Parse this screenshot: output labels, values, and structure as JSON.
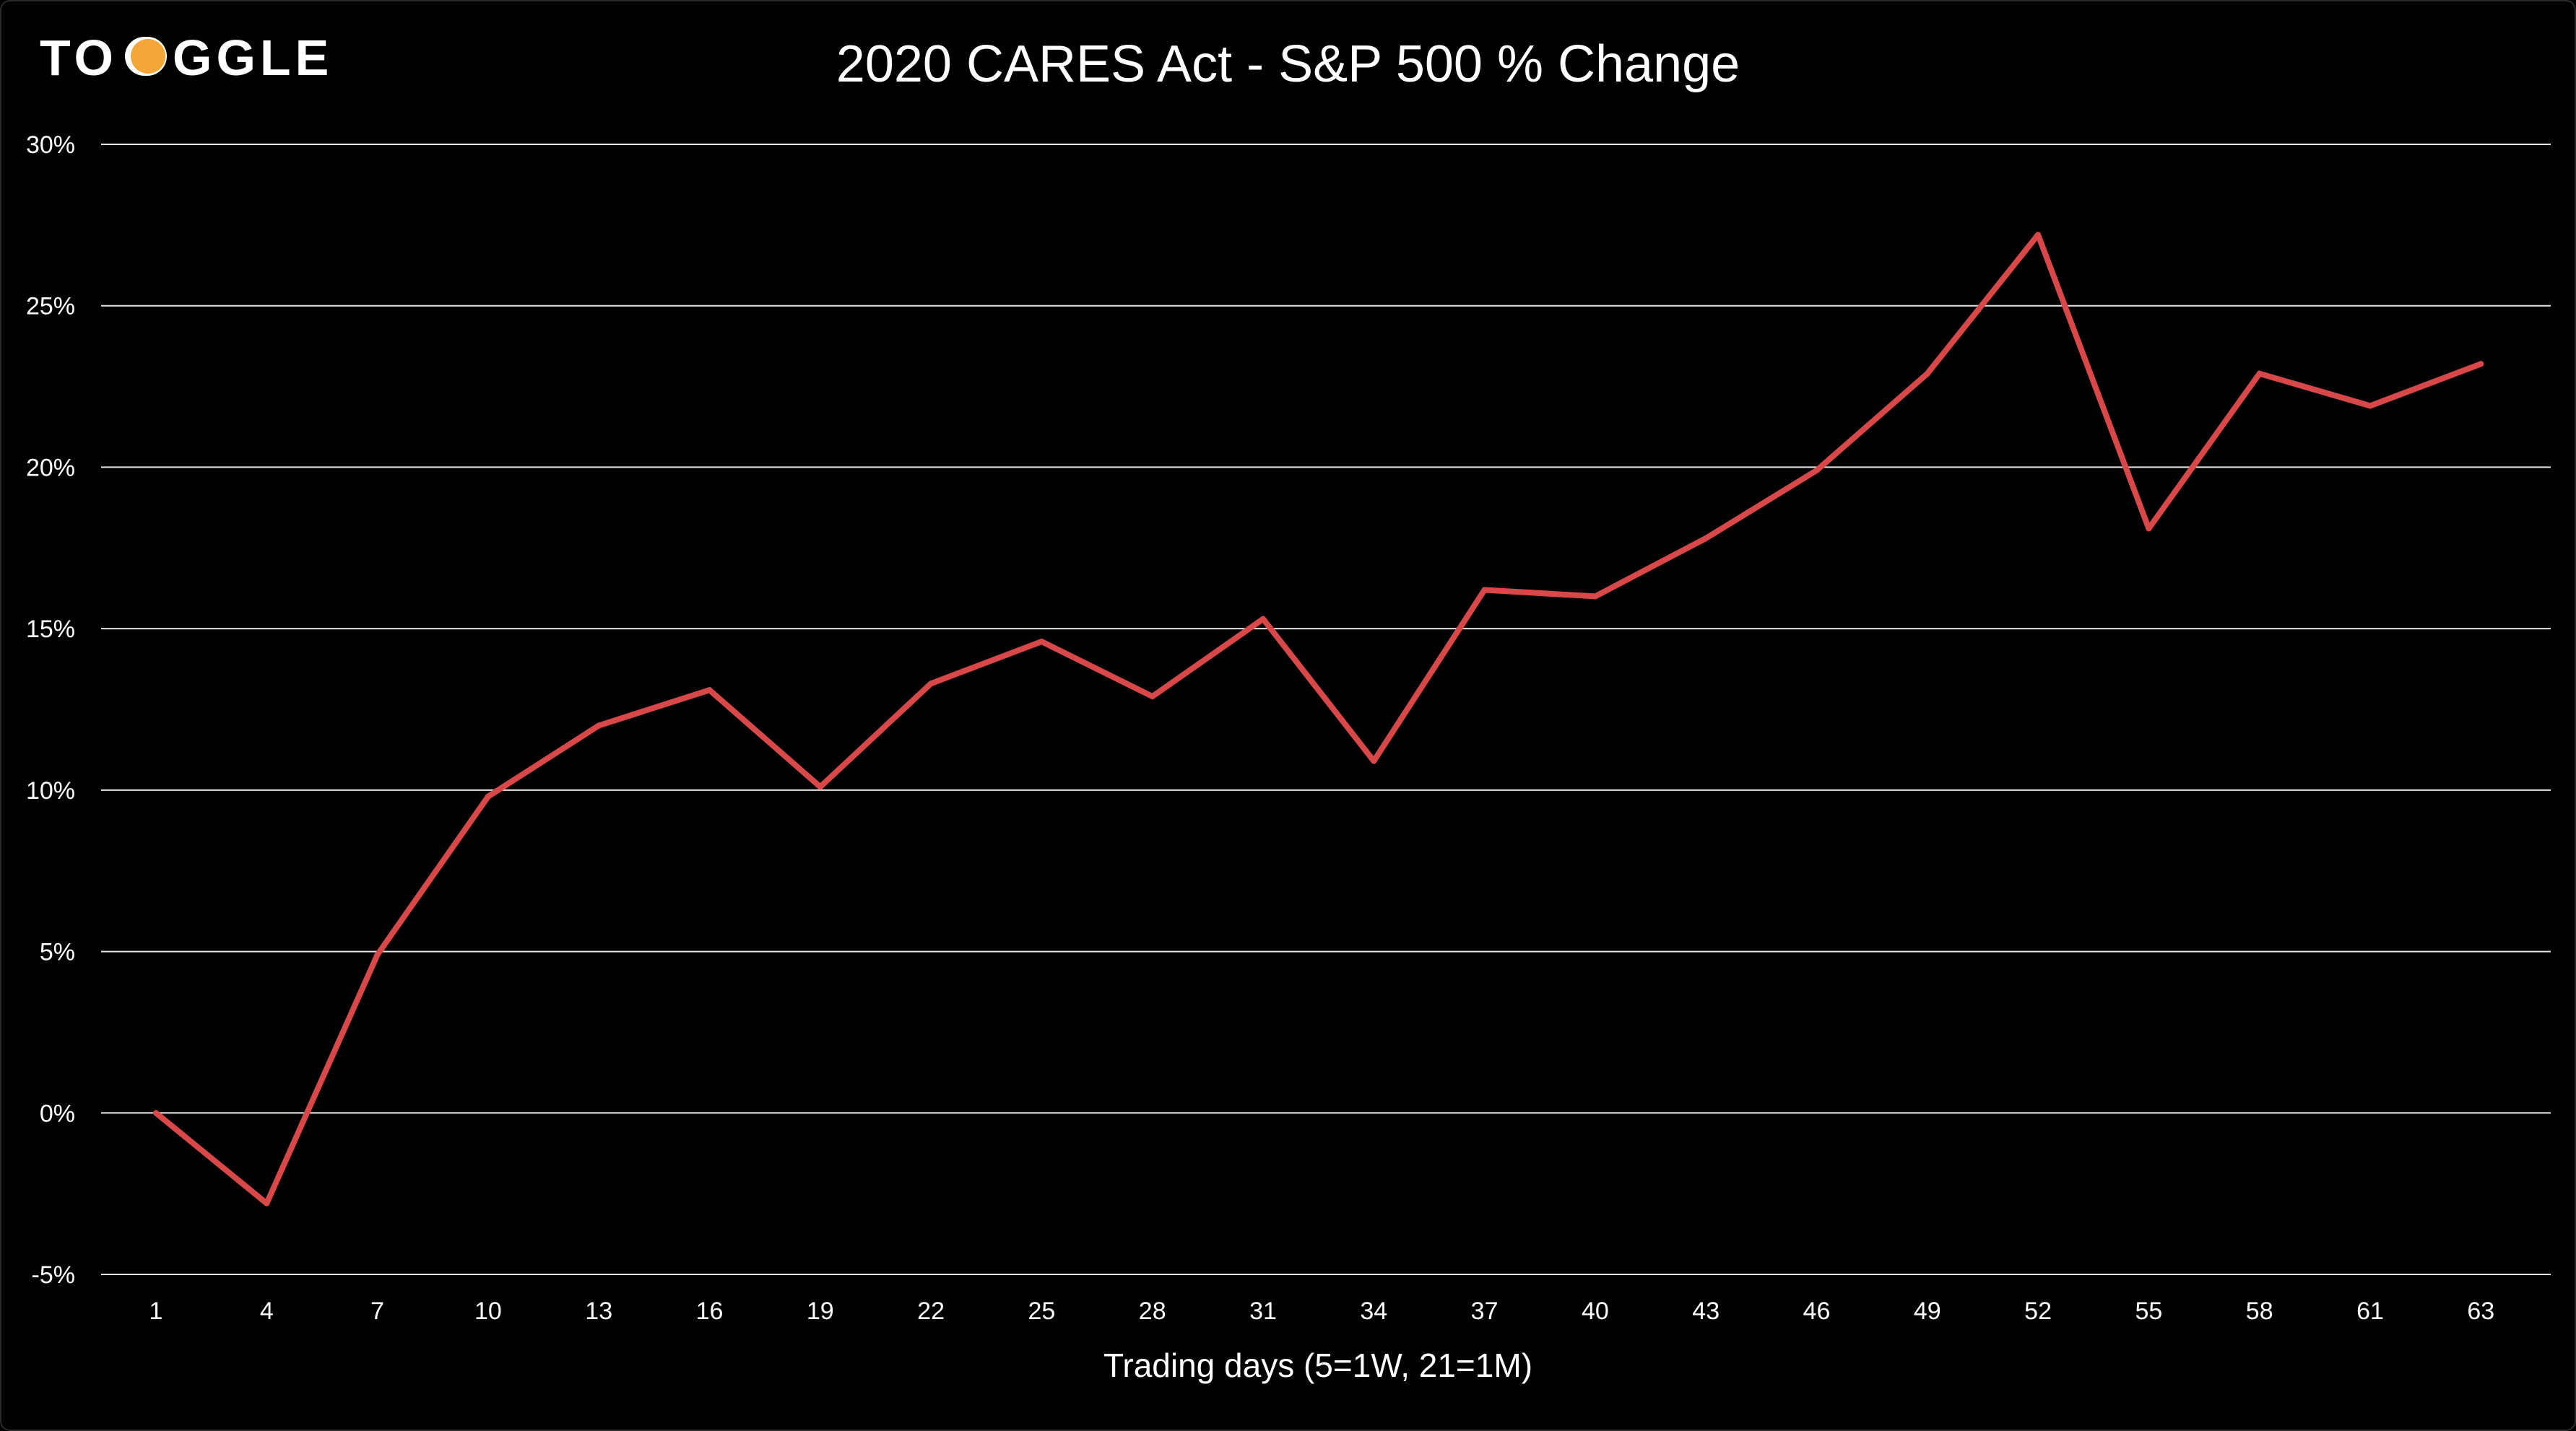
{
  "brand": {
    "logo_text_before": "TO",
    "logo_text_after": "GGLE",
    "accent_color": "#F4A63A"
  },
  "chart_data": {
    "type": "line",
    "title": "2020 CARES Act - S&P 500 % Change",
    "xlabel": "Trading days (5=1W, 21=1M)",
    "ylabel": "",
    "x": [
      1,
      4,
      7,
      10,
      13,
      16,
      19,
      22,
      25,
      28,
      31,
      34,
      37,
      40,
      43,
      46,
      49,
      52,
      55,
      58,
      61,
      63
    ],
    "xticks": [
      "1",
      "4",
      "7",
      "10",
      "13",
      "16",
      "19",
      "22",
      "25",
      "28",
      "31",
      "34",
      "37",
      "40",
      "43",
      "46",
      "49",
      "52",
      "55",
      "58",
      "61",
      "63"
    ],
    "yticks": [
      "-5%",
      "0%",
      "5%",
      "10%",
      "15%",
      "20%",
      "25%",
      "30%"
    ],
    "ytick_values": [
      -5,
      0,
      5,
      10,
      15,
      20,
      25,
      30
    ],
    "ylim": [
      -5,
      30
    ],
    "series": [
      {
        "color": "#D94848",
        "values": [
          0,
          -2.8,
          4.9,
          9.8,
          12.0,
          13.1,
          10.1,
          13.3,
          14.6,
          12.9,
          15.3,
          10.9,
          16.2,
          16.0,
          17.8,
          19.9,
          22.9,
          27.2,
          18.1,
          22.9,
          21.9,
          23.2
        ]
      }
    ],
    "grid": true,
    "legend": "none"
  }
}
